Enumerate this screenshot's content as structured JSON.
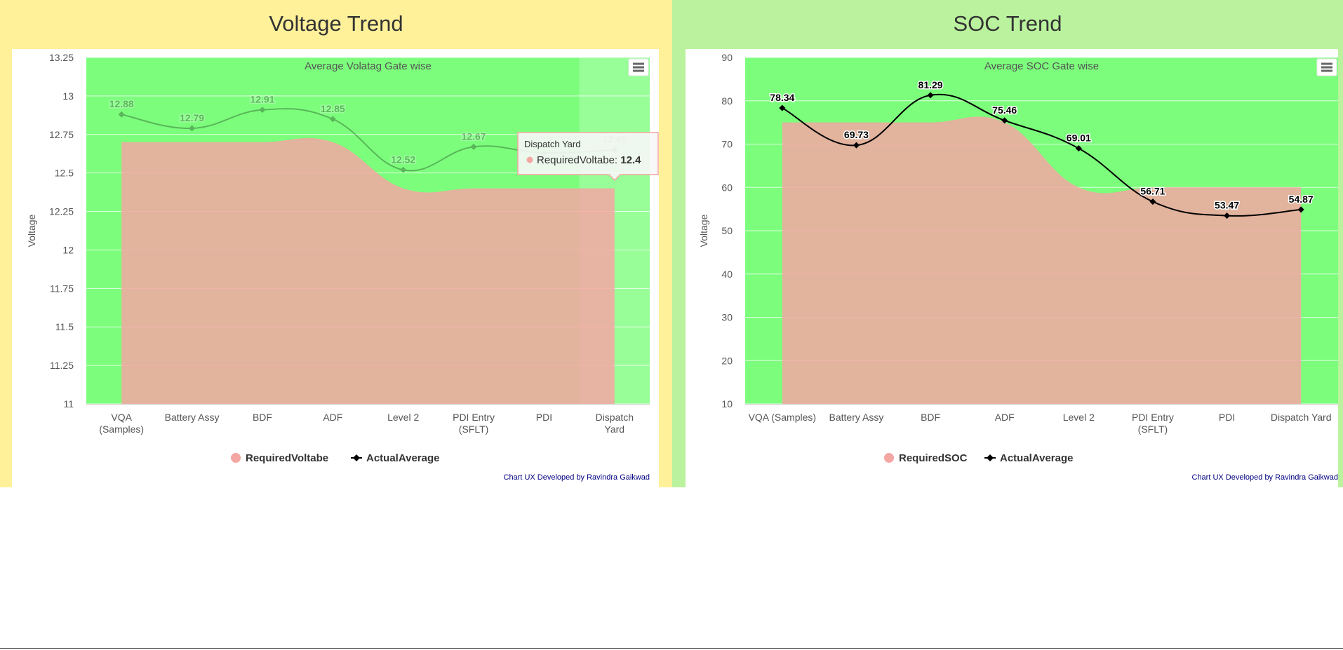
{
  "voltage": {
    "panel_title": "Voltage Trend",
    "menu_icon": "hamburger-menu-icon",
    "colors": {
      "plot_bg": "#7cfe7c",
      "area": "#f4a6a3",
      "line": "#000000"
    },
    "tooltip": {
      "category": "Dispatch Yard",
      "series": "RequiredVoltabe",
      "value": "12.4"
    },
    "credit": "Chart UX Developed by Ravindra Gaikwad",
    "chart_data": {
      "type": "line",
      "title": "Average Volatag Gate wise",
      "ylabel": "Voltage",
      "xlabel": "",
      "categories": [
        "VQA (Samples)",
        "Battery Assy",
        "BDF",
        "ADF",
        "Level 2",
        "PDI Entry (SFLT)",
        "PDI",
        "Dispatch Yard"
      ],
      "ylim": [
        11,
        13.25
      ],
      "yticks": [
        "11",
        "11.25",
        "11.5",
        "11.75",
        "12",
        "12.25",
        "12.5",
        "12.75",
        "13",
        "13.25"
      ],
      "series": [
        {
          "name": "RequiredVoltabe",
          "type": "area",
          "values": [
            12.7,
            12.7,
            12.7,
            12.7,
            12.4,
            12.4,
            12.4,
            12.4
          ]
        },
        {
          "name": "ActualAverage",
          "type": "line",
          "values": [
            12.88,
            12.79,
            12.91,
            12.85,
            12.52,
            12.67,
            12.63,
            12.65
          ],
          "labels": [
            "12.88",
            "12.79",
            "12.91",
            "12.85",
            "12.52",
            "12.67",
            "",
            "12.65"
          ]
        }
      ],
      "legend_placement": "bottom-center",
      "grid": true,
      "hover_category": "Dispatch Yard"
    }
  },
  "soc": {
    "panel_title": "SOC Trend",
    "menu_icon": "hamburger-menu-icon",
    "colors": {
      "plot_bg": "#7cfe7c",
      "area": "#f4a6a3",
      "line": "#000000"
    },
    "credit": "Chart UX Developed by Ravindra Gaikwad",
    "chart_data": {
      "type": "line",
      "title": "Average SOC Gate wise",
      "ylabel": "Voltage",
      "xlabel": "",
      "categories": [
        "VQA (Samples)",
        "Battery Assy",
        "BDF",
        "ADF",
        "Level 2",
        "PDI Entry (SFLT)",
        "PDI",
        "Dispatch Yard"
      ],
      "ylim": [
        10,
        90
      ],
      "yticks": [
        "10",
        "20",
        "30",
        "40",
        "50",
        "60",
        "70",
        "80",
        "90"
      ],
      "series": [
        {
          "name": "RequiredSOC",
          "type": "area",
          "values": [
            75,
            75,
            75,
            75,
            60,
            60,
            60,
            60
          ]
        },
        {
          "name": "ActualAverage",
          "type": "line",
          "values": [
            78.34,
            69.73,
            81.29,
            75.46,
            69.01,
            56.71,
            53.47,
            54.87
          ],
          "labels": [
            "78.34",
            "69.73",
            "81.29",
            "75.46",
            "69.01",
            "56.71",
            "53.47",
            "54.87"
          ]
        }
      ],
      "legend_placement": "bottom-center",
      "grid": true
    }
  }
}
